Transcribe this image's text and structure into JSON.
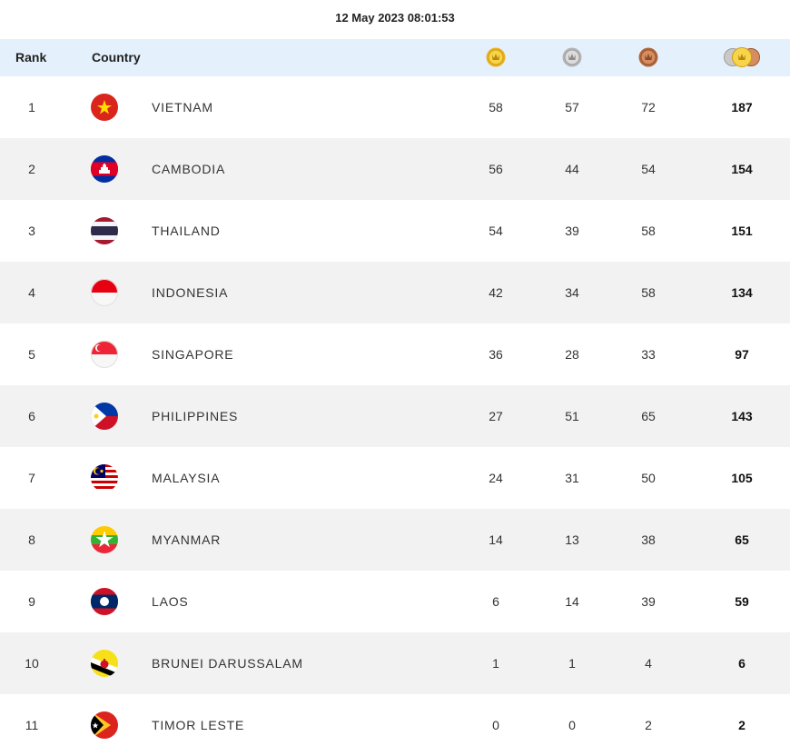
{
  "timestamp": "12 May 2023  08:01:53",
  "header": {
    "rank_label": "Rank",
    "country_label": "Country",
    "gold_icon": "gold-medal-icon",
    "silver_icon": "silver-medal-icon",
    "bronze_icon": "bronze-medal-icon",
    "total_icon": "total-medals-icon"
  },
  "colors": {
    "header_bg": "#e4f0fb",
    "row_alt_bg": "#f2f2f2",
    "gold": "#f2c12e",
    "silver": "#c9c9c9",
    "bronze": "#c9825a"
  },
  "rows": [
    {
      "rank": "1",
      "country": "VIETNAM",
      "flag": "vietnam-flag-icon",
      "gold": "58",
      "silver": "57",
      "bronze": "72",
      "total": "187"
    },
    {
      "rank": "2",
      "country": "CAMBODIA",
      "flag": "cambodia-flag-icon",
      "gold": "56",
      "silver": "44",
      "bronze": "54",
      "total": "154"
    },
    {
      "rank": "3",
      "country": "THAILAND",
      "flag": "thailand-flag-icon",
      "gold": "54",
      "silver": "39",
      "bronze": "58",
      "total": "151"
    },
    {
      "rank": "4",
      "country": "INDONESIA",
      "flag": "indonesia-flag-icon",
      "gold": "42",
      "silver": "34",
      "bronze": "58",
      "total": "134"
    },
    {
      "rank": "5",
      "country": "SINGAPORE",
      "flag": "singapore-flag-icon",
      "gold": "36",
      "silver": "28",
      "bronze": "33",
      "total": "97"
    },
    {
      "rank": "6",
      "country": "PHILIPPINES",
      "flag": "philippines-flag-icon",
      "gold": "27",
      "silver": "51",
      "bronze": "65",
      "total": "143"
    },
    {
      "rank": "7",
      "country": "MALAYSIA",
      "flag": "malaysia-flag-icon",
      "gold": "24",
      "silver": "31",
      "bronze": "50",
      "total": "105"
    },
    {
      "rank": "8",
      "country": "MYANMAR",
      "flag": "myanmar-flag-icon",
      "gold": "14",
      "silver": "13",
      "bronze": "38",
      "total": "65"
    },
    {
      "rank": "9",
      "country": "LAOS",
      "flag": "laos-flag-icon",
      "gold": "6",
      "silver": "14",
      "bronze": "39",
      "total": "59"
    },
    {
      "rank": "10",
      "country": "BRUNEI DARUSSALAM",
      "flag": "brunei-flag-icon",
      "gold": "1",
      "silver": "1",
      "bronze": "4",
      "total": "6"
    },
    {
      "rank": "11",
      "country": "TIMOR LESTE",
      "flag": "timor-leste-flag-icon",
      "gold": "0",
      "silver": "0",
      "bronze": "2",
      "total": "2"
    }
  ]
}
